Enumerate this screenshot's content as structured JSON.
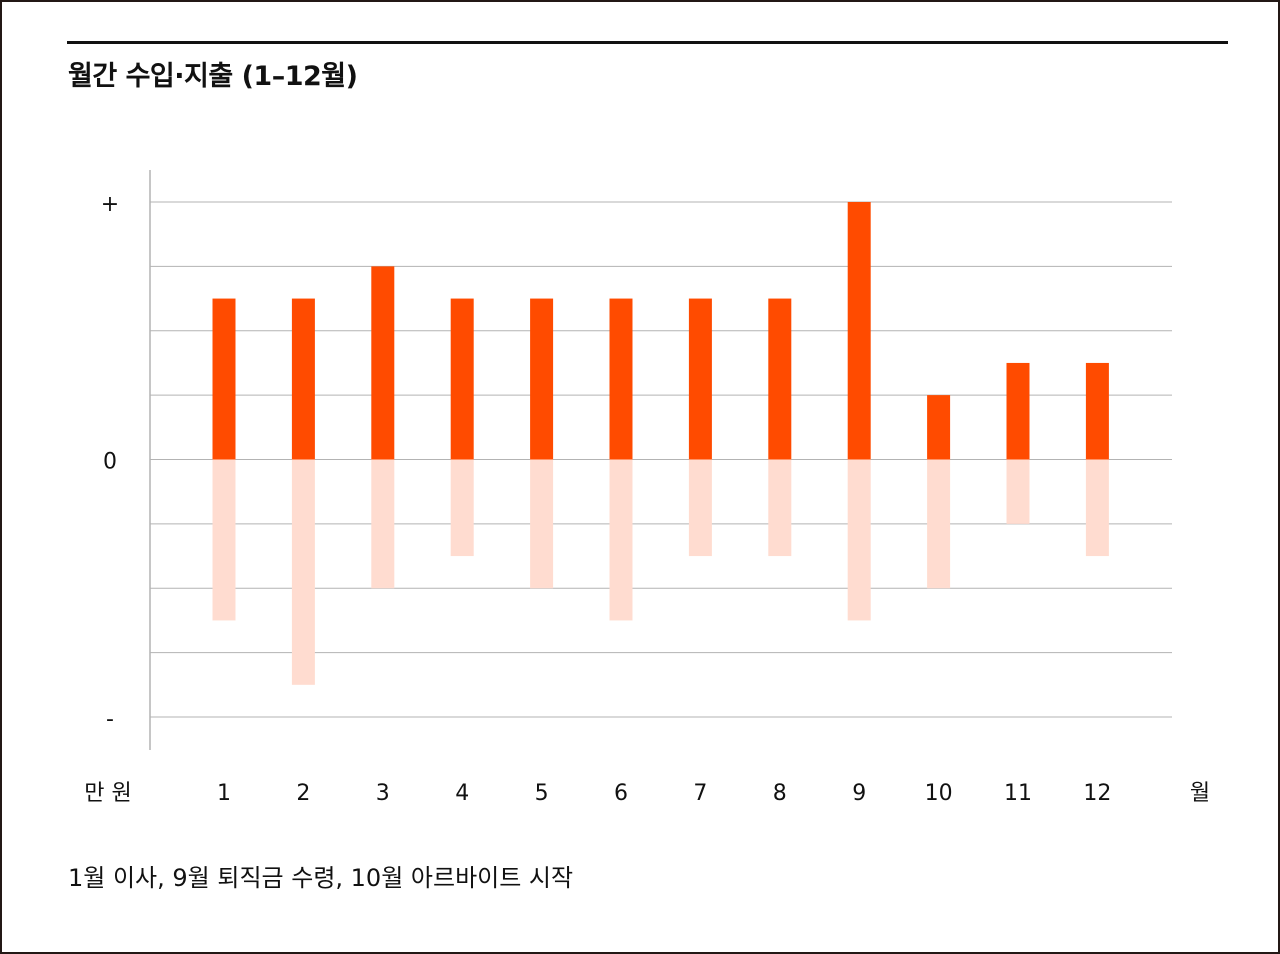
{
  "title": "월간 수입·지출 (1–12월)",
  "note": "1월 이사, 9월 퇴직금 수령, 10월 아르바이트 시작",
  "colors": {
    "income": "#ff4b00",
    "expense": "#ffdcd0",
    "grid": "#b3b3b3",
    "axis": "#b3b3b3"
  },
  "chart_data": {
    "type": "bar",
    "title": "월간 수입·지출 (1–12월)",
    "xlabel": "월",
    "ylabel": "만 원",
    "categories": [
      "1",
      "2",
      "3",
      "4",
      "5",
      "6",
      "7",
      "8",
      "9",
      "10",
      "11",
      "12"
    ],
    "series": [
      {
        "values": [
          2.5,
          2.5,
          3,
          2.5,
          2.5,
          2.5,
          2.5,
          2.5,
          4,
          1,
          1.5,
          1.5
        ]
      },
      {
        "values": [
          -2.5,
          -3.5,
          -2,
          -1.5,
          -2,
          -2.5,
          -1.5,
          -1.5,
          -2.5,
          -2,
          -1,
          -1.5
        ]
      }
    ],
    "ylim": [
      -4,
      4
    ],
    "y_ticks": [
      {
        "value": 4,
        "label": "+"
      },
      {
        "value": 0,
        "label": "0"
      },
      {
        "value": -4,
        "label": "-"
      }
    ],
    "grid": true,
    "legend": "none"
  }
}
